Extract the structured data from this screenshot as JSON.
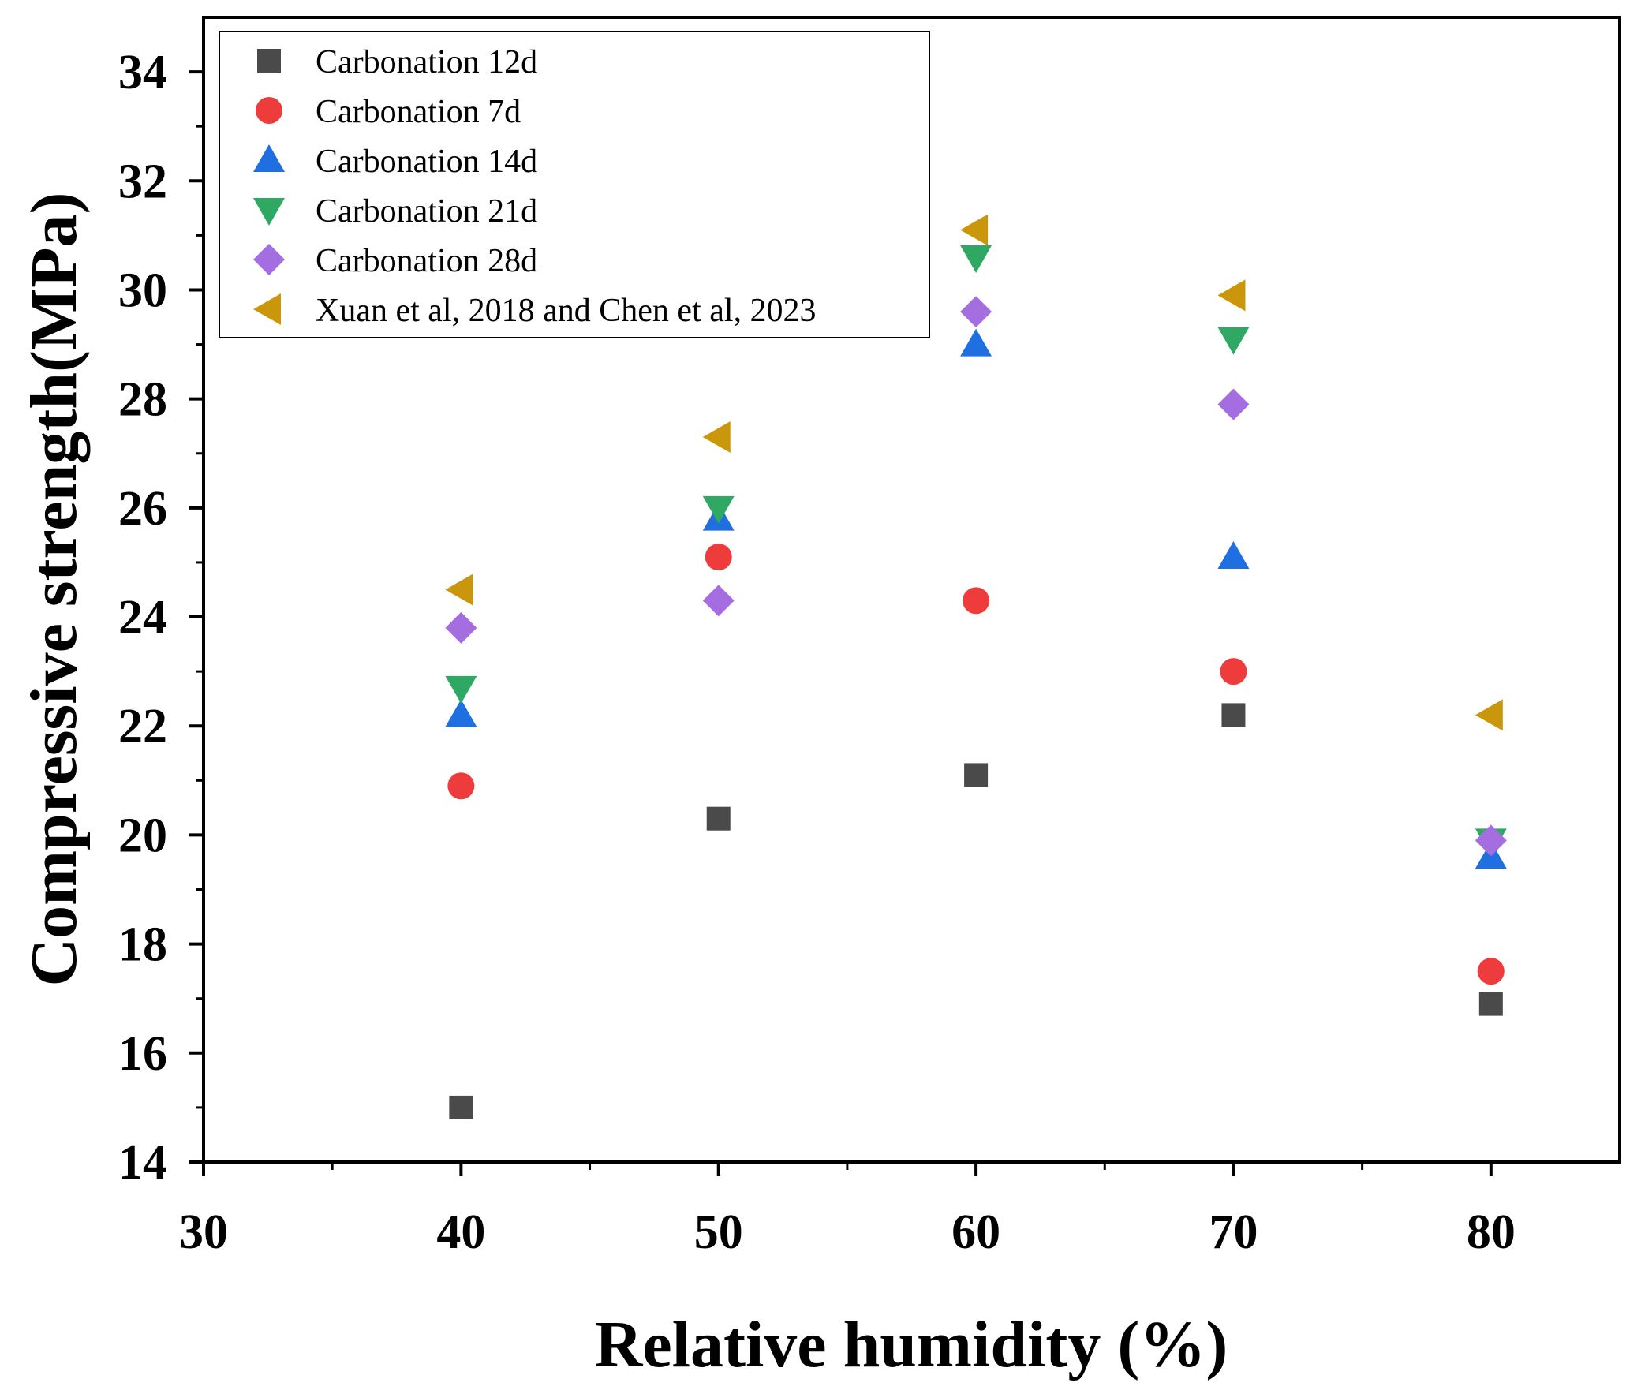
{
  "chart_data": {
    "type": "scatter",
    "title": "",
    "xlabel": "Relative humidity (%)",
    "ylabel": "Compressive strength(MPa)",
    "xlim": [
      30,
      85
    ],
    "ylim": [
      14,
      35
    ],
    "xticks": [
      30,
      40,
      50,
      60,
      70,
      80
    ],
    "yticks": [
      14,
      16,
      18,
      20,
      22,
      24,
      26,
      28,
      30,
      32,
      34
    ],
    "x": [
      40,
      50,
      60,
      70,
      80
    ],
    "legend_position": "top-left",
    "series": [
      {
        "name": "Carbonation 12d",
        "marker": "square",
        "color": "#4a4a4a",
        "values": [
          15.0,
          20.3,
          21.1,
          22.2,
          16.9
        ]
      },
      {
        "name": "Carbonation 7d",
        "marker": "circle",
        "color": "#ee3b3b",
        "values": [
          20.9,
          25.1,
          24.3,
          23.0,
          17.5
        ]
      },
      {
        "name": "Carbonation 14d",
        "marker": "triangle-up",
        "color": "#1f6fe0",
        "values": [
          22.2,
          25.8,
          29.0,
          25.1,
          19.6
        ]
      },
      {
        "name": "Carbonation 21d",
        "marker": "triangle-down",
        "color": "#2ea862",
        "values": [
          22.7,
          26.0,
          30.6,
          29.1,
          19.9
        ]
      },
      {
        "name": "Carbonation 28d",
        "marker": "diamond",
        "color": "#a56ee0",
        "values": [
          23.8,
          24.3,
          29.6,
          27.9,
          19.9
        ]
      },
      {
        "name": "Xuan et al, 2018 and Chen et al, 2023",
        "marker": "triangle-left",
        "color": "#c9960c",
        "values": [
          24.5,
          27.3,
          31.1,
          29.9,
          22.2
        ]
      }
    ]
  }
}
